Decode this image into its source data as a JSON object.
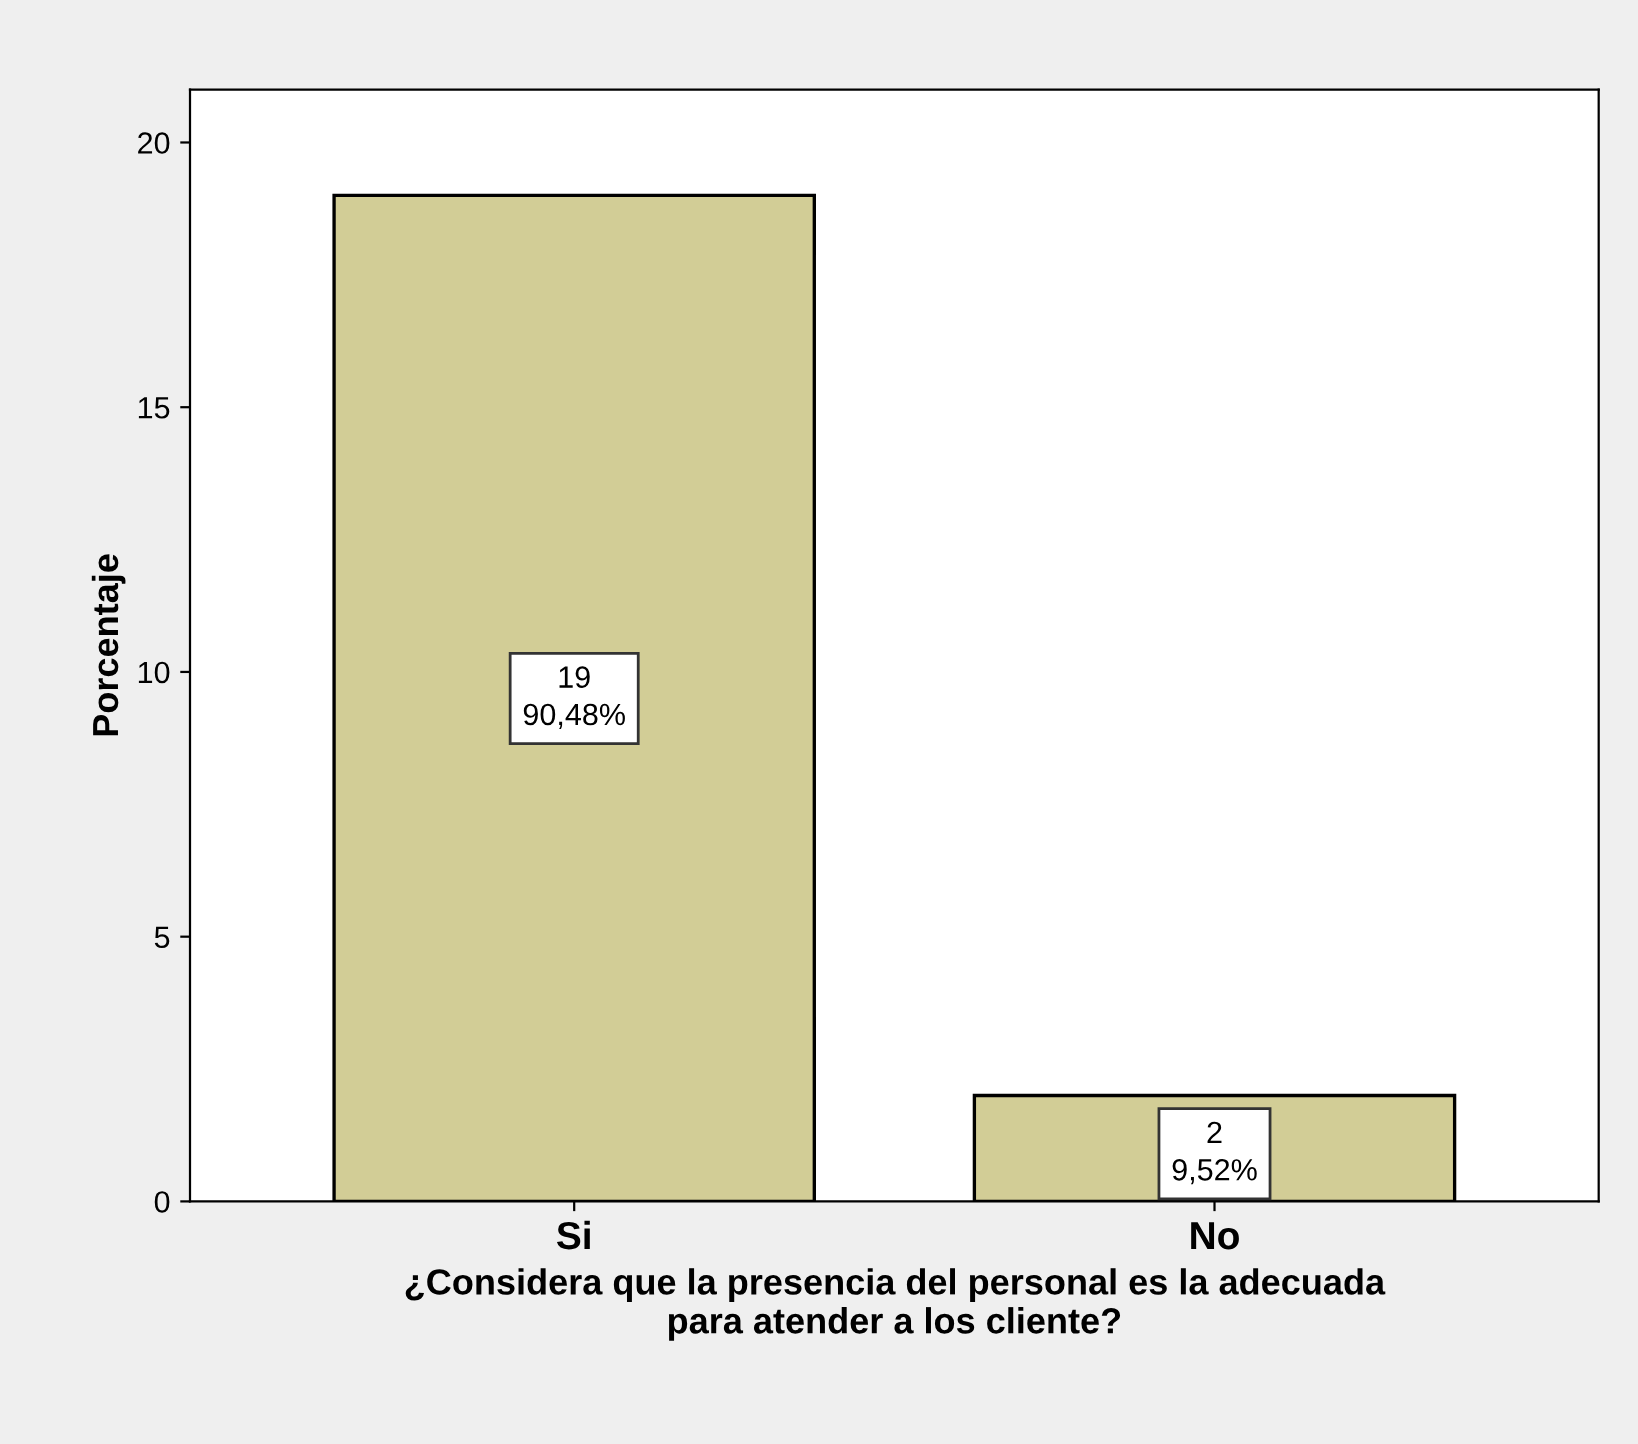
{
  "chart_data": {
    "type": "bar",
    "xlabel": "¿Considera que la presencia del personal es la adecuada\npara atender a los cliente?",
    "ylabel": "Porcentaje",
    "categories": [
      "Si",
      "No"
    ],
    "values": [
      19,
      2
    ],
    "color": "#d2cd96",
    "value_labels": [
      "19\n90,48%",
      "2\n9,52%"
    ],
    "ylim": [
      0,
      21
    ],
    "yticks": [
      0,
      5,
      10,
      15,
      20
    ],
    "grid": false
  }
}
